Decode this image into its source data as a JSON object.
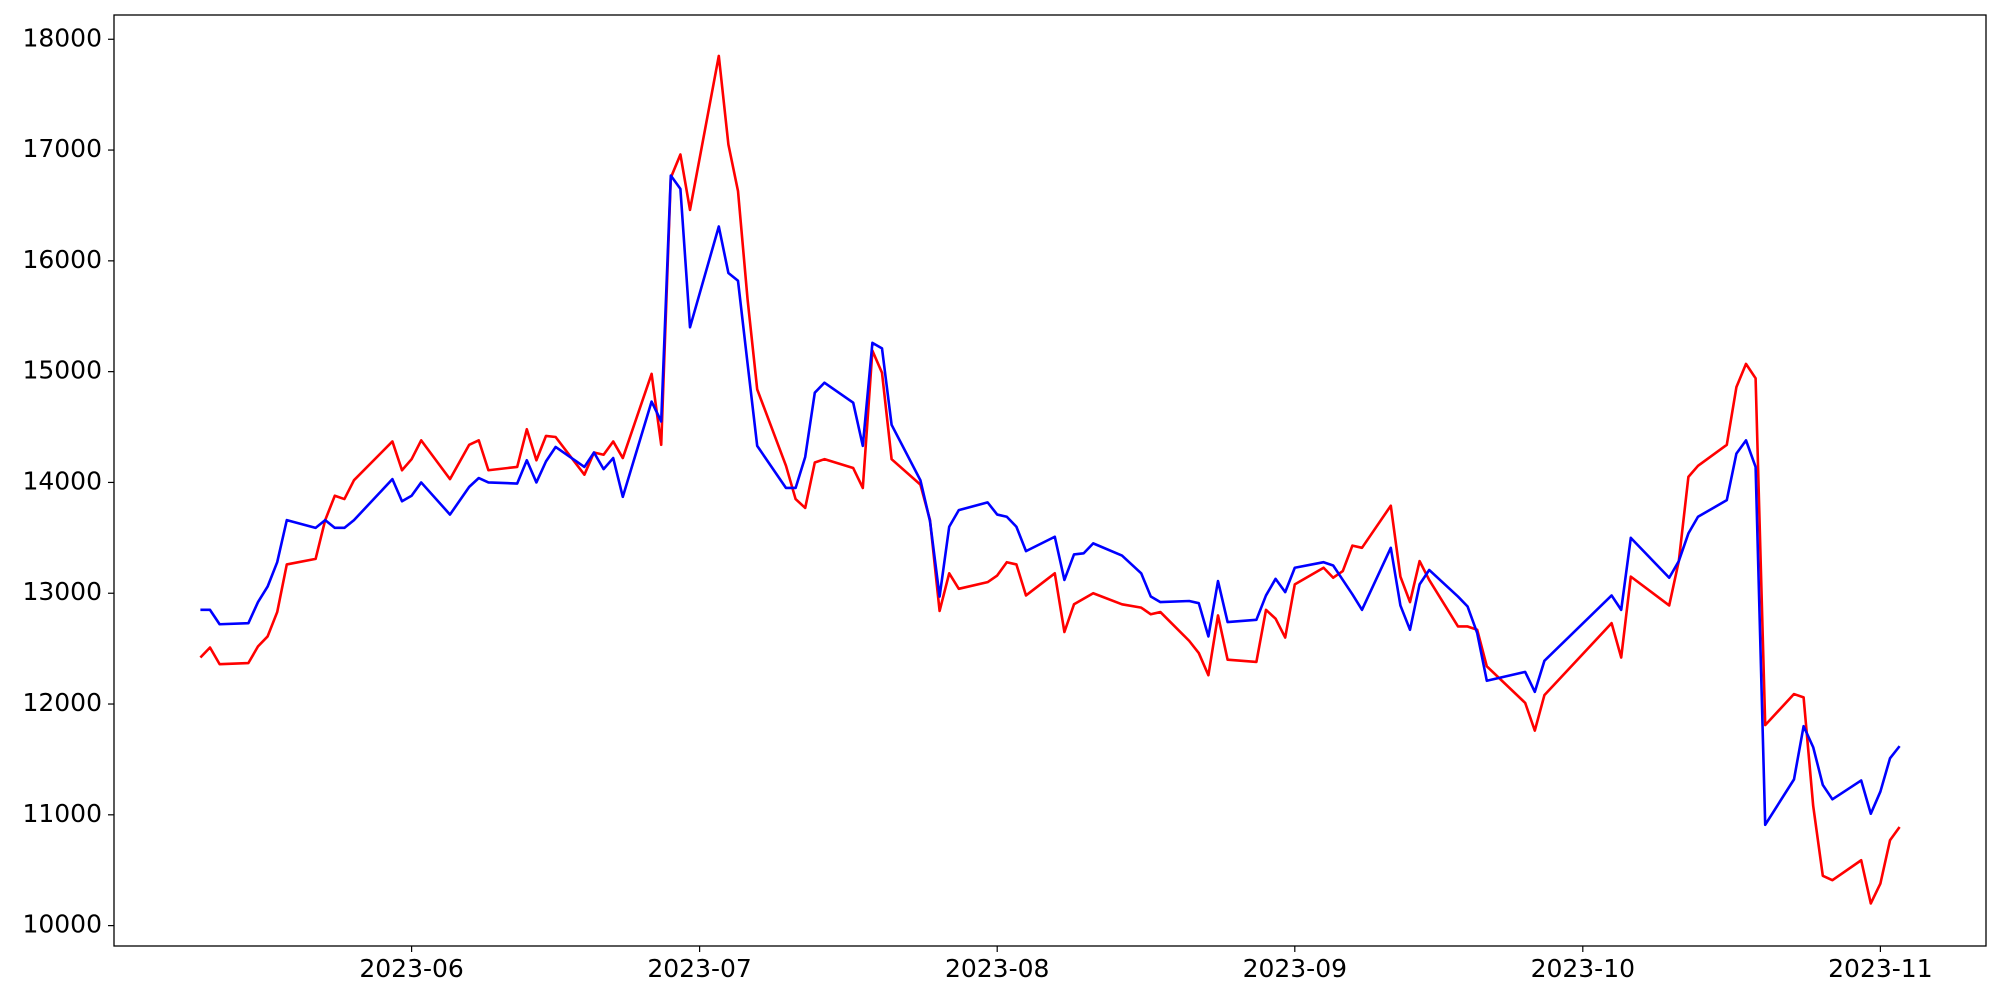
{
  "chart_data": {
    "type": "line",
    "x": [
      19487,
      19488,
      19489,
      19492,
      19493,
      19494,
      19495,
      19496,
      19499,
      19500,
      19501,
      19502,
      19503,
      19507,
      19508,
      19509,
      19510,
      19513,
      19515,
      19516,
      19517,
      19520,
      19521,
      19522,
      19523,
      19524,
      19527,
      19528,
      19529,
      19530,
      19531,
      19534,
      19535,
      19536,
      19537,
      19538,
      19541,
      19542,
      19543,
      19544,
      19545,
      19548,
      19549,
      19550,
      19551,
      19552,
      19555,
      19556,
      19557,
      19558,
      19559,
      19562,
      19563,
      19564,
      19565,
      19566,
      19569,
      19570,
      19571,
      19572,
      19573,
      19576,
      19577,
      19578,
      19579,
      19580,
      19583,
      19585,
      19586,
      19587,
      19590,
      19591,
      19592,
      19593,
      19594,
      19597,
      19598,
      19599,
      19600,
      19601,
      19604,
      19605,
      19606,
      19607,
      19608,
      19611,
      19612,
      19613,
      19614,
      19615,
      19618,
      19619,
      19620,
      19621,
      19625,
      19626,
      19627,
      19634,
      19635,
      19636,
      19640,
      19641,
      19642,
      19643,
      19646,
      19647,
      19648,
      19649,
      19650,
      19653,
      19654,
      19655,
      19656,
      19657,
      19660,
      19661,
      19662,
      19663,
      19664
    ],
    "series": [
      {
        "color": "#ff0000",
        "values": [
          12420,
          12510,
          12360,
          12370,
          12520,
          12610,
          12830,
          13260,
          13310,
          13660,
          13880,
          13850,
          14020,
          14370,
          14110,
          14210,
          14380,
          14030,
          14340,
          14380,
          14110,
          14140,
          14480,
          14200,
          14420,
          14410,
          14070,
          14270,
          14250,
          14370,
          14220,
          14980,
          14340,
          16750,
          16960,
          16460,
          17850,
          17050,
          16630,
          15650,
          14840,
          14150,
          13850,
          13770,
          14180,
          14210,
          14130,
          13950,
          15190,
          14990,
          14210,
          13980,
          13660,
          12840,
          13180,
          13040,
          13100,
          13160,
          13280,
          13260,
          12980,
          13180,
          12650,
          12900,
          12950,
          13000,
          12900,
          12870,
          12810,
          12830,
          12570,
          12460,
          12260,
          12800,
          12400,
          12380,
          12850,
          12770,
          12600,
          13080,
          13230,
          13140,
          13200,
          13430,
          13410,
          13790,
          13150,
          12920,
          13290,
          13120,
          12700,
          12700,
          12670,
          12340,
          12010,
          11760,
          12080,
          12730,
          12420,
          13150,
          12890,
          13290,
          14050,
          14150,
          14340,
          14860,
          15070,
          14940,
          11810,
          12090,
          12060,
          11080,
          10450,
          10410,
          10590,
          10200,
          10380,
          10770,
          10890
        ]
      },
      {
        "color": "#0000ff",
        "values": [
          12850,
          12850,
          12720,
          12730,
          12920,
          13060,
          13280,
          13660,
          13590,
          13660,
          13590,
          13590,
          13660,
          14030,
          13830,
          13880,
          14000,
          13710,
          13960,
          14040,
          14000,
          13990,
          14200,
          14000,
          14190,
          14320,
          14140,
          14270,
          14120,
          14220,
          13870,
          14730,
          14550,
          16770,
          16650,
          15400,
          16310,
          15890,
          15820,
          15070,
          14330,
          13950,
          13950,
          14230,
          14810,
          14900,
          14720,
          14330,
          15260,
          15210,
          14520,
          14020,
          13650,
          12970,
          13600,
          13750,
          13820,
          13710,
          13690,
          13600,
          13380,
          13510,
          13120,
          13350,
          13360,
          13450,
          13340,
          13180,
          12970,
          12920,
          12930,
          12910,
          12610,
          13110,
          12740,
          12760,
          12980,
          13130,
          13010,
          13230,
          13280,
          13250,
          13120,
          12990,
          12850,
          13410,
          12890,
          12670,
          13080,
          13210,
          12970,
          12880,
          12640,
          12210,
          12290,
          12110,
          12390,
          12980,
          12850,
          13500,
          13140,
          13290,
          13540,
          13690,
          13840,
          14260,
          14380,
          14140,
          10910,
          11320,
          11800,
          11610,
          11270,
          11140,
          11310,
          11010,
          11210,
          11510,
          11620
        ]
      }
    ],
    "xlim": [
      19478,
      19673
    ],
    "xticks": [
      {
        "value": 19509,
        "label": "2023-06"
      },
      {
        "value": 19539,
        "label": "2023-07"
      },
      {
        "value": 19570,
        "label": "2023-08"
      },
      {
        "value": 19601,
        "label": "2023-09"
      },
      {
        "value": 19631,
        "label": "2023-10"
      },
      {
        "value": 19662,
        "label": "2023-11"
      }
    ],
    "ylim": [
      9816,
      18219
    ],
    "yticks": [
      10000,
      11000,
      12000,
      13000,
      14000,
      15000,
      16000,
      17000,
      18000
    ]
  }
}
